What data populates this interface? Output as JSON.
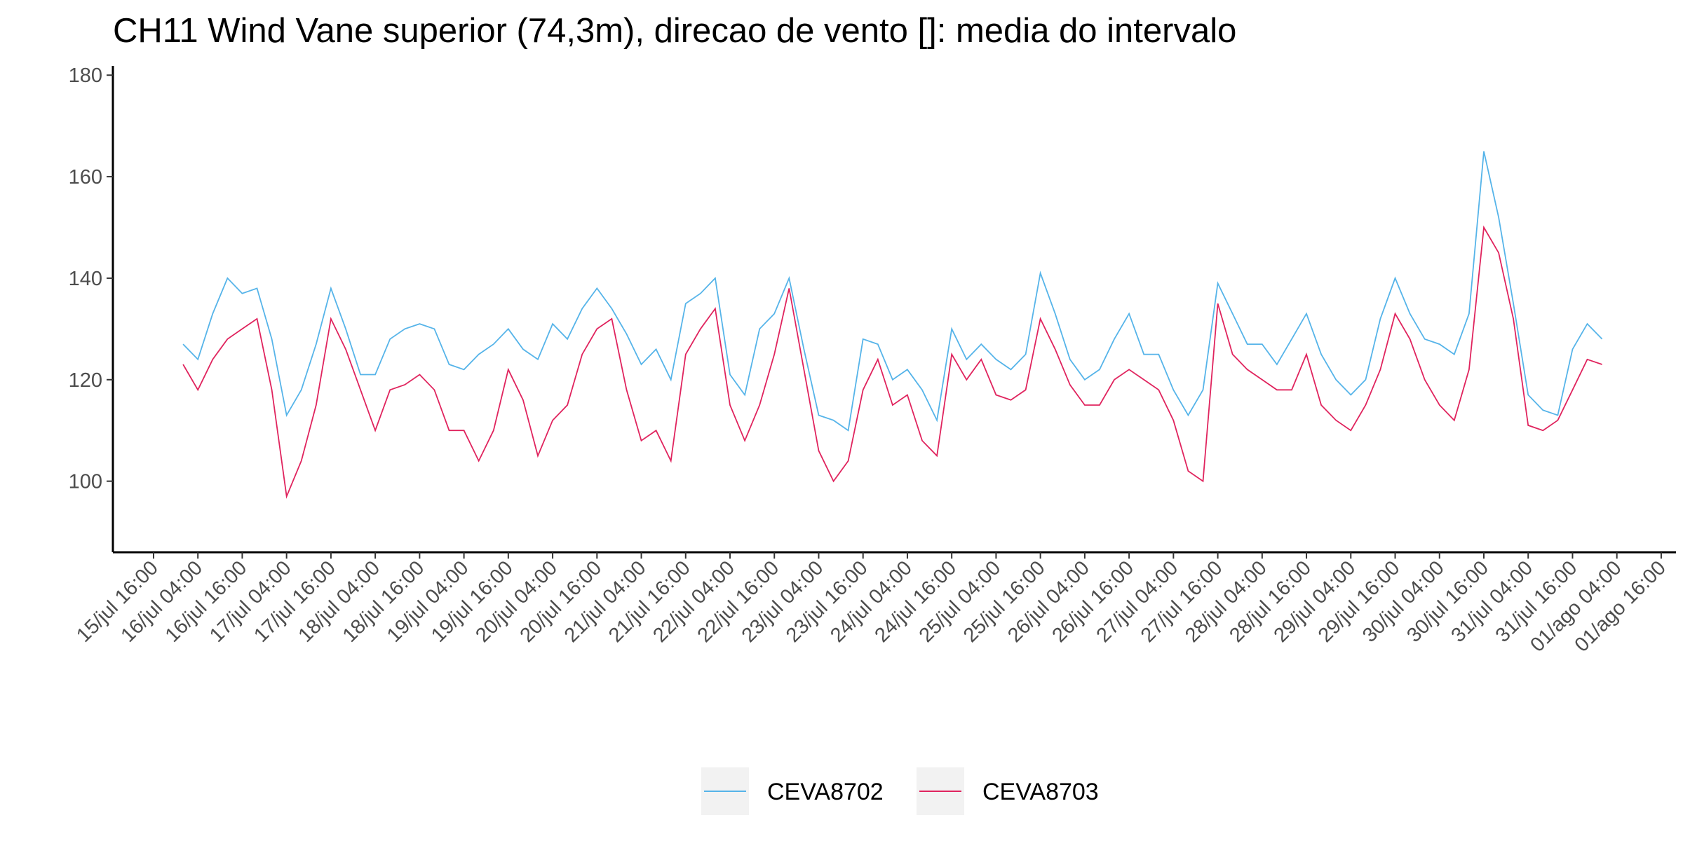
{
  "chart_data": {
    "type": "line",
    "title": "CH11 Wind Vane superior (74,3m), direcao de vento []: media do intervalo",
    "x": [
      "16/jul 00:00",
      "16/jul 04:00",
      "16/jul 08:00",
      "16/jul 12:00",
      "16/jul 16:00",
      "16/jul 20:00",
      "17/jul 00:00",
      "17/jul 04:00",
      "17/jul 08:00",
      "17/jul 12:00",
      "17/jul 16:00",
      "17/jul 20:00",
      "18/jul 00:00",
      "18/jul 04:00",
      "18/jul 08:00",
      "18/jul 12:00",
      "18/jul 16:00",
      "18/jul 20:00",
      "19/jul 00:00",
      "19/jul 04:00",
      "19/jul 08:00",
      "19/jul 12:00",
      "19/jul 16:00",
      "19/jul 20:00",
      "20/jul 00:00",
      "20/jul 04:00",
      "20/jul 08:00",
      "20/jul 12:00",
      "20/jul 16:00",
      "20/jul 20:00",
      "21/jul 00:00",
      "21/jul 04:00",
      "21/jul 08:00",
      "21/jul 12:00",
      "21/jul 16:00",
      "21/jul 20:00",
      "22/jul 00:00",
      "22/jul 04:00",
      "22/jul 08:00",
      "22/jul 12:00",
      "22/jul 16:00",
      "22/jul 20:00",
      "23/jul 00:00",
      "23/jul 04:00",
      "23/jul 08:00",
      "23/jul 12:00",
      "23/jul 16:00",
      "23/jul 20:00",
      "24/jul 00:00",
      "24/jul 04:00",
      "24/jul 08:00",
      "24/jul 12:00",
      "24/jul 16:00",
      "24/jul 20:00",
      "25/jul 00:00",
      "25/jul 04:00",
      "25/jul 08:00",
      "25/jul 12:00",
      "25/jul 16:00",
      "25/jul 20:00",
      "26/jul 00:00",
      "26/jul 04:00",
      "26/jul 08:00",
      "26/jul 12:00",
      "26/jul 16:00",
      "26/jul 20:00",
      "27/jul 00:00",
      "27/jul 04:00",
      "27/jul 08:00",
      "27/jul 12:00",
      "27/jul 16:00",
      "27/jul 20:00",
      "28/jul 00:00",
      "28/jul 04:00",
      "28/jul 08:00",
      "28/jul 12:00",
      "28/jul 16:00",
      "28/jul 20:00",
      "29/jul 00:00",
      "29/jul 04:00",
      "29/jul 08:00",
      "29/jul 12:00",
      "29/jul 16:00",
      "29/jul 20:00",
      "30/jul 00:00",
      "30/jul 04:00",
      "30/jul 08:00",
      "30/jul 12:00",
      "30/jul 16:00",
      "30/jul 20:00",
      "31/jul 00:00",
      "31/jul 04:00",
      "31/jul 08:00",
      "31/jul 12:00",
      "31/jul 16:00",
      "31/jul 20:00",
      "01/ago 00:00"
    ],
    "series": [
      {
        "name": "CEVA8702",
        "color": "#56b4e9",
        "values": [
          127,
          124,
          133,
          140,
          137,
          138,
          128,
          113,
          118,
          127,
          138,
          130,
          121,
          121,
          128,
          130,
          131,
          130,
          123,
          122,
          125,
          127,
          130,
          126,
          124,
          131,
          128,
          134,
          138,
          134,
          129,
          123,
          126,
          120,
          135,
          137,
          140,
          121,
          117,
          130,
          133,
          140,
          126,
          113,
          112,
          110,
          128,
          127,
          120,
          122,
          118,
          112,
          130,
          124,
          127,
          124,
          122,
          125,
          141,
          133,
          124,
          120,
          122,
          128,
          133,
          125,
          125,
          118,
          113,
          118,
          139,
          133,
          127,
          127,
          123,
          128,
          133,
          125,
          120,
          117,
          120,
          132,
          140,
          133,
          128,
          127,
          125,
          133,
          165,
          152,
          135,
          117,
          114,
          113,
          126,
          131,
          128
        ]
      },
      {
        "name": "CEVA8703",
        "color": "#e0245e",
        "values": [
          123,
          118,
          124,
          128,
          130,
          132,
          118,
          97,
          104,
          115,
          132,
          126,
          118,
          110,
          118,
          119,
          121,
          118,
          110,
          110,
          104,
          110,
          122,
          116,
          105,
          112,
          115,
          125,
          130,
          132,
          118,
          108,
          110,
          104,
          125,
          130,
          134,
          115,
          108,
          115,
          125,
          138,
          122,
          106,
          100,
          104,
          118,
          124,
          115,
          117,
          108,
          105,
          125,
          120,
          124,
          117,
          116,
          118,
          132,
          126,
          119,
          115,
          115,
          120,
          122,
          120,
          118,
          112,
          102,
          100,
          135,
          125,
          122,
          120,
          118,
          118,
          125,
          115,
          112,
          110,
          115,
          122,
          133,
          128,
          120,
          115,
          112,
          122,
          150,
          145,
          132,
          111,
          110,
          112,
          118,
          124,
          123
        ]
      }
    ],
    "xlim": [
      "15/jul 05:00",
      "01/ago 20:00"
    ],
    "xticks": [
      "15/jul 16:00",
      "16/jul 04:00",
      "16/jul 16:00",
      "17/jul 04:00",
      "17/jul 16:00",
      "18/jul 04:00",
      "18/jul 16:00",
      "19/jul 04:00",
      "19/jul 16:00",
      "20/jul 04:00",
      "20/jul 16:00",
      "21/jul 04:00",
      "21/jul 16:00",
      "22/jul 04:00",
      "22/jul 16:00",
      "23/jul 04:00",
      "23/jul 16:00",
      "24/jul 04:00",
      "24/jul 16:00",
      "25/jul 04:00",
      "25/jul 16:00",
      "26/jul 04:00",
      "26/jul 16:00",
      "27/jul 04:00",
      "27/jul 16:00",
      "28/jul 04:00",
      "28/jul 16:00",
      "29/jul 04:00",
      "29/jul 16:00",
      "30/jul 04:00",
      "30/jul 16:00",
      "31/jul 04:00",
      "31/jul 16:00",
      "01/ago 04:00",
      "01/ago 16:00"
    ],
    "ylim": [
      86,
      181
    ],
    "yticks": [
      100,
      120,
      140,
      160,
      180
    ],
    "grid": false,
    "legend": "bottom"
  }
}
